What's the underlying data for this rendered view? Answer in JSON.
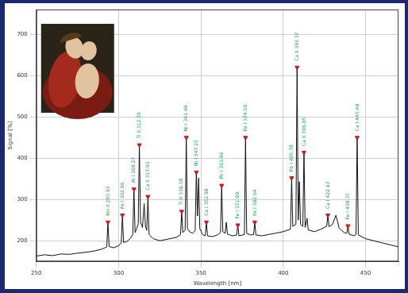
{
  "chart_data": {
    "type": "line",
    "x_label": "Wavelength [nm]",
    "y_label": "Signal [%]",
    "color": "#111111",
    "grid": true,
    "xlim": [
      250,
      470
    ],
    "xticks": [
      250,
      300,
      350,
      400,
      450
    ],
    "ylim": [
      150,
      760
    ],
    "yticks": [
      200,
      300,
      400,
      500,
      600,
      700
    ],
    "x": [
      250,
      255,
      260,
      265,
      270,
      275,
      280,
      285,
      290,
      292.8,
      293.5,
      294.2,
      297,
      300,
      301.6,
      302.3,
      303,
      305,
      307,
      308.6,
      309.3,
      310,
      311,
      311.9,
      312.6,
      313.3,
      314.5,
      315.5,
      316.3,
      317.1,
      317.8,
      318.5,
      321,
      325,
      330,
      335,
      337.6,
      338.3,
      339,
      340.4,
      341.1,
      341.8,
      343,
      345,
      346.5,
      347.2,
      347.9,
      348.6,
      349.3,
      351,
      352.6,
      353.3,
      354,
      357,
      360,
      361.9,
      362.6,
      363.3,
      364.7,
      365.4,
      366.1,
      369,
      371.7,
      372.4,
      373.1,
      376.4,
      377.1,
      377.8,
      380,
      382,
      382.7,
      383.4,
      387,
      391,
      395,
      400,
      404.4,
      405.1,
      405.8,
      407.7,
      408.4,
      409.1,
      409.8,
      410.5,
      411.9,
      412.6,
      413.3,
      414.5,
      415.2,
      419,
      423,
      426.4,
      427.1,
      427.8,
      430,
      432,
      434,
      437,
      438.6,
      439.3,
      440,
      443,
      444.2,
      444.9,
      445.6,
      450,
      455,
      460,
      465,
      470
    ],
    "values": [
      163,
      166,
      164,
      168,
      167,
      170,
      172,
      175,
      180,
      185,
      245,
      186,
      183,
      188,
      195,
      262,
      196,
      198,
      205,
      215,
      325,
      220,
      230,
      240,
      432,
      245,
      232,
      290,
      235,
      225,
      307,
      215,
      205,
      200,
      204,
      208,
      215,
      271,
      220,
      225,
      450,
      230,
      222,
      218,
      225,
      366,
      260,
      352,
      230,
      215,
      212,
      245,
      212,
      210,
      214,
      220,
      334,
      222,
      218,
      245,
      216,
      212,
      214,
      238,
      212,
      215,
      450,
      218,
      214,
      215,
      245,
      214,
      212,
      215,
      218,
      222,
      228,
      352,
      235,
      240,
      620,
      250,
      343,
      240,
      235,
      414,
      232,
      254,
      226,
      222,
      228,
      235,
      262,
      234,
      240,
      262,
      230,
      220,
      218,
      236,
      216,
      212,
      215,
      450,
      214,
      205,
      200,
      195,
      190,
      185
    ],
    "annotations": [
      {
        "x": 293.5,
        "y": 245,
        "text": "Mn II 293.93"
      },
      {
        "x": 302.3,
        "y": 262,
        "text": "Fe I 302.06"
      },
      {
        "x": 309.3,
        "y": 325,
        "text": "Al I 309.27"
      },
      {
        "x": 312.6,
        "y": 432,
        "text": "Ti II 312.50"
      },
      {
        "x": 317.8,
        "y": 307,
        "text": "Ca II 317.93"
      },
      {
        "x": 338.3,
        "y": 271,
        "text": "Ti II 338.38"
      },
      {
        "x": 341.1,
        "y": 450,
        "text": "Ni I 341.48"
      },
      {
        "x": 347.2,
        "y": 366,
        "text": "Ni I 347.25"
      },
      {
        "x": 353.3,
        "y": 245,
        "text": "Co I 352.98"
      },
      {
        "x": 362.6,
        "y": 334,
        "text": "Pb I 363.96"
      },
      {
        "x": 372.4,
        "y": 238,
        "text": "Fe I 371.99"
      },
      {
        "x": 377.1,
        "y": 450,
        "text": "Fe I 374.56"
      },
      {
        "x": 382.7,
        "y": 245,
        "text": "Fe I 382.04"
      },
      {
        "x": 405.1,
        "y": 352,
        "text": "Pb I 405.78"
      },
      {
        "x": 408.4,
        "y": 620,
        "text": "Ca II 393.37"
      },
      {
        "x": 412.6,
        "y": 414,
        "text": "Ca II 396.85"
      },
      {
        "x": 427.1,
        "y": 262,
        "text": "Ca I 422.67"
      },
      {
        "x": 439.3,
        "y": 236,
        "text": "Fe I 438.35"
      },
      {
        "x": 444.9,
        "y": 450,
        "text": "Ca I 445.48"
      }
    ]
  }
}
